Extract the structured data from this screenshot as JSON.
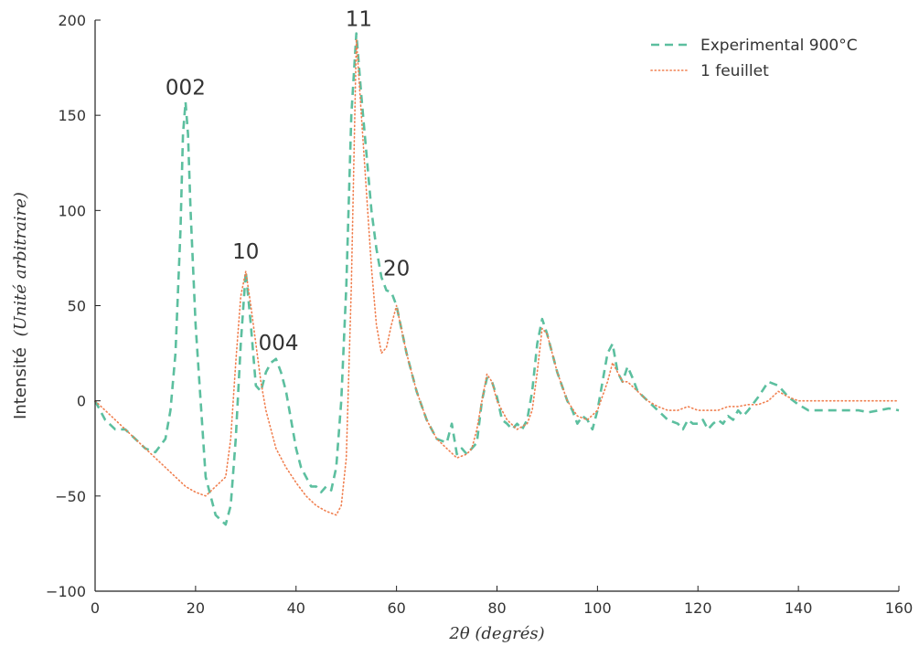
{
  "colors": {
    "experimental": "#5cbf9f",
    "model": "#f07f4f",
    "axis": "#222222",
    "text": "#333333"
  },
  "chart_data": {
    "type": "line",
    "xlabel": "2θ (degrés)",
    "ylabel_text": "Intensité",
    "ylabel_math": "(Unité arbitraire)",
    "xlim": [
      0,
      160
    ],
    "ylim": [
      -100,
      200
    ],
    "xticks": [
      0,
      20,
      40,
      60,
      80,
      100,
      120,
      140,
      160
    ],
    "yticks": [
      -100,
      -50,
      0,
      50,
      100,
      150,
      200
    ],
    "xtick_labels": [
      "0",
      "20",
      "40",
      "60",
      "80",
      "100",
      "120",
      "140",
      "160"
    ],
    "ytick_labels": [
      "−100",
      "−50",
      "0",
      "50",
      "100",
      "150",
      "200"
    ],
    "grid": false,
    "legend_position": "top-right",
    "annotations": [
      {
        "text": "002",
        "x": 18,
        "y": 157
      },
      {
        "text": "10",
        "x": 30,
        "y": 71
      },
      {
        "text": "004",
        "x": 36.5,
        "y": 23
      },
      {
        "text": "11",
        "x": 52.5,
        "y": 193
      },
      {
        "text": "20",
        "x": 60,
        "y": 62
      }
    ],
    "series": [
      {
        "name": "Experimental 900°C",
        "style": "dashed",
        "x": [
          0,
          2,
          4,
          6,
          8,
          10,
          12,
          14,
          15,
          16,
          17,
          17.5,
          18,
          18.5,
          19,
          20,
          21,
          22,
          24,
          26,
          27,
          28,
          29,
          30,
          31,
          32,
          33,
          34,
          35,
          36,
          37,
          38,
          39,
          40,
          41,
          42,
          43,
          44,
          45,
          46,
          47,
          48,
          49,
          50,
          51,
          52,
          53,
          54,
          55,
          56,
          57,
          58,
          59,
          60,
          62,
          64,
          66,
          68,
          70,
          71,
          72,
          73,
          74,
          75,
          76,
          77,
          78,
          79,
          80,
          81,
          82,
          83,
          84,
          85,
          86,
          87,
          88,
          89,
          90,
          92,
          94,
          95,
          96,
          97,
          98,
          99,
          100,
          101,
          102,
          103,
          104,
          105,
          106,
          107,
          108,
          110,
          112,
          114,
          116,
          117,
          118,
          119,
          120,
          121,
          122,
          123,
          124,
          125,
          126,
          127,
          128,
          129,
          130,
          132,
          134,
          136,
          138,
          140,
          142,
          144,
          146,
          148,
          150,
          152,
          154,
          156,
          158,
          160
        ],
        "y": [
          0,
          -10,
          -15,
          -15,
          -20,
          -25,
          -27,
          -20,
          -5,
          25,
          90,
          140,
          157,
          140,
          100,
          40,
          0,
          -40,
          -60,
          -65,
          -55,
          -20,
          30,
          68,
          40,
          8,
          5,
          15,
          20,
          22,
          15,
          5,
          -10,
          -25,
          -35,
          -40,
          -45,
          -45,
          -48,
          -45,
          -47,
          -35,
          0,
          60,
          150,
          193,
          160,
          130,
          100,
          80,
          65,
          58,
          57,
          50,
          25,
          5,
          -10,
          -20,
          -22,
          -12,
          -28,
          -25,
          -28,
          -25,
          -22,
          0,
          12,
          10,
          2,
          -10,
          -12,
          -15,
          -12,
          -15,
          -10,
          5,
          30,
          43,
          35,
          15,
          0,
          -5,
          -12,
          -8,
          -10,
          -15,
          -5,
          10,
          25,
          30,
          15,
          10,
          18,
          12,
          5,
          0,
          -5,
          -10,
          -12,
          -15,
          -10,
          -12,
          -12,
          -10,
          -15,
          -12,
          -10,
          -12,
          -8,
          -10,
          -5,
          -8,
          -5,
          2,
          10,
          8,
          2,
          -2,
          -5,
          -5,
          -5,
          -5,
          -5,
          -5,
          -6,
          -5,
          -4,
          -5
        ]
      },
      {
        "name": "1 feuillet",
        "style": "dotted",
        "x": [
          0,
          2,
          4,
          6,
          8,
          10,
          12,
          14,
          16,
          18,
          20,
          22,
          24,
          26,
          27,
          28,
          29,
          30,
          31,
          32,
          33,
          34,
          36,
          38,
          40,
          42,
          44,
          46,
          48,
          49,
          50,
          51,
          52,
          53,
          54,
          55,
          56,
          57,
          58,
          59,
          60,
          62,
          64,
          66,
          68,
          70,
          72,
          74,
          75,
          76,
          77,
          78,
          79,
          80,
          82,
          84,
          86,
          87,
          88,
          89,
          90,
          92,
          94,
          96,
          98,
          100,
          102,
          103,
          104,
          105,
          106,
          108,
          110,
          112,
          114,
          116,
          118,
          120,
          122,
          124,
          126,
          128,
          130,
          132,
          134,
          136,
          138,
          140,
          142,
          144,
          146,
          148,
          150,
          152,
          154,
          156,
          158,
          160
        ],
        "y": [
          0,
          -5,
          -10,
          -15,
          -20,
          -25,
          -30,
          -35,
          -40,
          -45,
          -48,
          -50,
          -45,
          -40,
          -20,
          20,
          55,
          68,
          50,
          30,
          10,
          -5,
          -25,
          -35,
          -43,
          -50,
          -55,
          -58,
          -60,
          -55,
          -30,
          60,
          190,
          150,
          110,
          70,
          40,
          25,
          28,
          40,
          50,
          25,
          5,
          -10,
          -20,
          -25,
          -30,
          -28,
          -25,
          -15,
          0,
          14,
          10,
          0,
          -10,
          -15,
          -12,
          -5,
          15,
          38,
          35,
          15,
          0,
          -8,
          -10,
          -5,
          10,
          20,
          15,
          10,
          10,
          5,
          0,
          -3,
          -5,
          -5,
          -3,
          -5,
          -5,
          -5,
          -3,
          -3,
          -2,
          -2,
          0,
          5,
          2,
          0,
          0,
          0,
          0,
          0,
          0,
          0,
          0,
          0,
          0,
          0
        ]
      }
    ]
  }
}
